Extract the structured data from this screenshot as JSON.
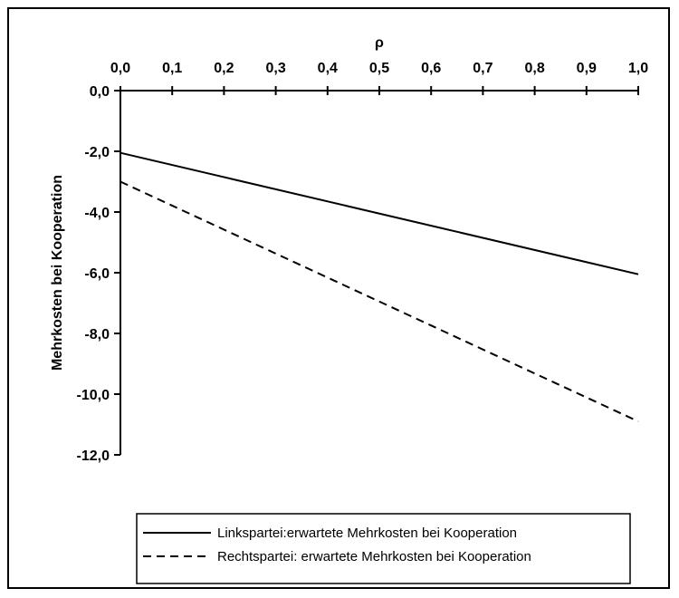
{
  "chart_data": {
    "type": "line",
    "title": "",
    "xlabel": "ρ",
    "ylabel": "Mehrkosten bei Kooperation",
    "xlim": [
      0,
      1
    ],
    "ylim": [
      -12,
      0
    ],
    "x_ticks": [
      "0,0",
      "0,1",
      "0,2",
      "0,3",
      "0,4",
      "0,5",
      "0,6",
      "0,7",
      "0,8",
      "0,9",
      "1,0"
    ],
    "y_ticks": [
      "0,0",
      "-2,0",
      "-4,0",
      "-6,0",
      "-8,0",
      "-10,0",
      "-12,0"
    ],
    "x_axis_position": "top",
    "grid": false,
    "legend_position": "bottom-center",
    "series": [
      {
        "name": "Linkspartei:erwartete Mehrkosten bei Kooperation",
        "style": "solid",
        "color": "#000000",
        "x": [
          0,
          1
        ],
        "y": [
          -2.05,
          -6.05
        ]
      },
      {
        "name": "Rechtspartei: erwartete Mehrkosten bei Kooperation",
        "style": "dashed",
        "color": "#000000",
        "x": [
          0,
          1
        ],
        "y": [
          -3.0,
          -10.9
        ]
      }
    ]
  }
}
